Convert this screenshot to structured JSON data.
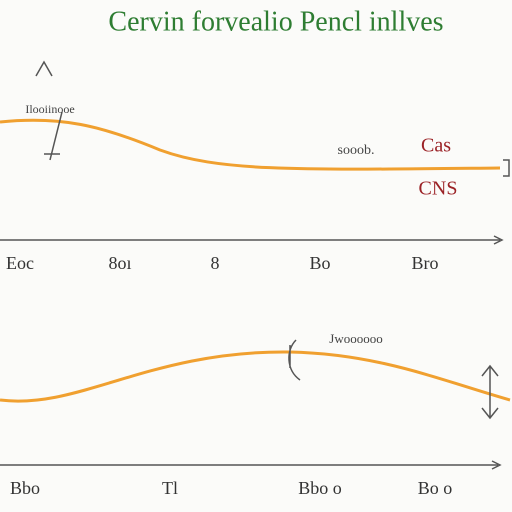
{
  "title": "Cervin forvealio Pencl inllves",
  "panels": [
    {
      "annotations": [
        "Ilooiinooe",
        "sooob.",
        "Cas",
        "CNS"
      ],
      "axis_labels": [
        "Eoc",
        "8oı",
        "8",
        "Bo",
        "Bro"
      ]
    },
    {
      "annotations": [
        "Jwoooooo"
      ],
      "axis_labels": [
        "Bbo",
        "Tl",
        "Bbo o",
        "Bo o"
      ]
    }
  ]
}
